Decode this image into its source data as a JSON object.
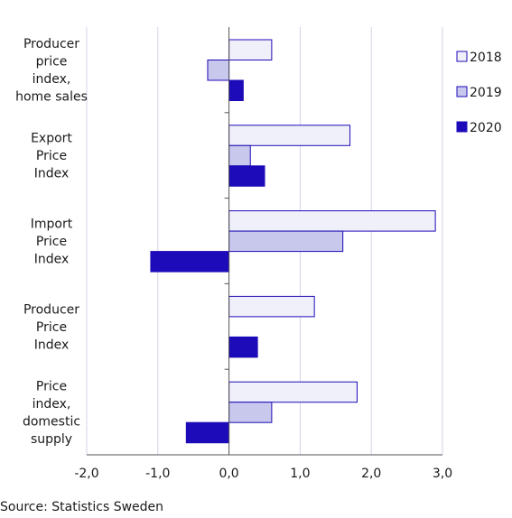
{
  "chart_data": {
    "type": "bar",
    "orientation": "horizontal",
    "title": "",
    "xlabel": "",
    "ylabel": "",
    "categories": [
      [
        "Producer",
        "price",
        "index,",
        "home sales"
      ],
      [
        "Export",
        "Price",
        "Index"
      ],
      [
        "Import",
        "Price",
        "Index"
      ],
      [
        "Producer",
        "Price",
        "Index"
      ],
      [
        "Price",
        "index,",
        "domestic",
        "supply"
      ]
    ],
    "series": [
      {
        "name": "2018",
        "color": "#f0f0fa",
        "values": [
          0.6,
          1.7,
          2.9,
          1.2,
          1.8
        ]
      },
      {
        "name": "2019",
        "color": "#c8c8ec",
        "values": [
          -0.3,
          0.3,
          1.6,
          0.0,
          0.6
        ]
      },
      {
        "name": "2020",
        "color": "#1d0ab8",
        "values": [
          0.2,
          0.5,
          -1.1,
          0.4,
          -0.6
        ]
      }
    ],
    "xlim": [
      -2.0,
      3.0
    ],
    "xticks": [
      -2.0,
      -1.0,
      0.0,
      1.0,
      2.0,
      3.0
    ],
    "xtick_labels": [
      "-2,0",
      "-1,0",
      "0,0",
      "1,0",
      "2,0",
      "3,0"
    ],
    "grid": "vertical",
    "legend_position": "top-right",
    "bar_outline_color": "#1d0ab8",
    "grid_color": "#d4d4e8"
  },
  "source": "Source: Statistics Sweden"
}
